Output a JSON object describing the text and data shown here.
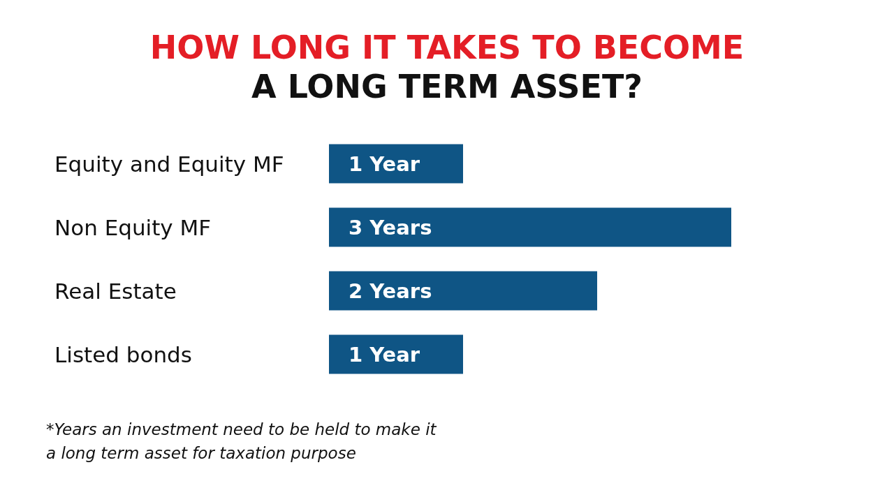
{
  "chart_data": {
    "type": "bar",
    "orientation": "horizontal",
    "title": "HOW LONG IT TAKES TO BECOME",
    "subtitle": "A LONG TERM ASSET?",
    "categories": [
      "Equity and Equity MF",
      "Non Equity MF",
      "Real Estate",
      "Listed bonds"
    ],
    "values": [
      1,
      3,
      2,
      1
    ],
    "value_labels": [
      "1 Year",
      "3 Years",
      "2 Years",
      "1 Year"
    ],
    "color": "#0f5585",
    "annotations": [
      "*Years an investment need to be held to make it a long term asset for taxation purpose"
    ]
  }
}
